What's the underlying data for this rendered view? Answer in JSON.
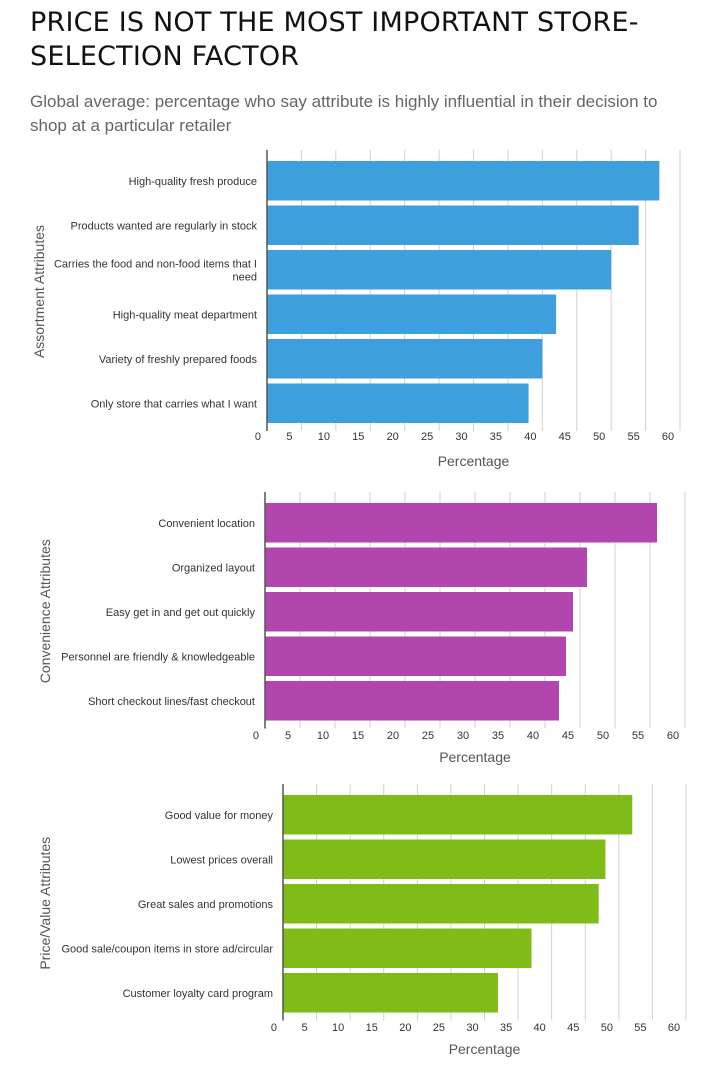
{
  "title": "PRICE IS NOT THE MOST IMPORTANT STORE-SELECTION FACTOR",
  "subtitle": "Global average: percentage who say attribute is highly influential in their decision to shop at a particular retailer",
  "chart_data": [
    {
      "type": "bar",
      "orientation": "horizontal",
      "group_label": "Assortment Attributes",
      "xlabel": "Percentage",
      "xlim": [
        0,
        60
      ],
      "ticks": [
        0,
        5,
        10,
        15,
        20,
        25,
        30,
        35,
        40,
        45,
        50,
        55,
        60
      ],
      "grid": true,
      "color": "#3d9fdb",
      "categories": [
        [
          "High-quality fresh produce"
        ],
        [
          "Products wanted are regularly in stock"
        ],
        [
          "Carries the food and non-food items that I",
          "need"
        ],
        [
          "High-quality meat department"
        ],
        [
          "Variety of freshly prepared foods"
        ],
        [
          "Only store that carries what I want"
        ]
      ],
      "values": [
        57,
        54,
        50,
        42,
        40,
        38
      ]
    },
    {
      "type": "bar",
      "orientation": "horizontal",
      "group_label": "Convenience Attributes",
      "xlabel": "Percentage",
      "xlim": [
        0,
        60
      ],
      "ticks": [
        0,
        5,
        10,
        15,
        20,
        25,
        30,
        35,
        40,
        45,
        50,
        55,
        60
      ],
      "grid": true,
      "color": "#b246ae",
      "categories": [
        [
          "Convenient location"
        ],
        [
          "Organized layout"
        ],
        [
          "Easy get in and get out quickly"
        ],
        [
          "Personnel are friendly & knowledgeable"
        ],
        [
          "Short checkout lines/fast checkout"
        ]
      ],
      "values": [
        56,
        46,
        44,
        43,
        42
      ]
    },
    {
      "type": "bar",
      "orientation": "horizontal",
      "group_label": "Price/Value Attributes",
      "xlabel": "Percentage",
      "xlim": [
        0,
        60
      ],
      "ticks": [
        0,
        5,
        10,
        15,
        20,
        25,
        30,
        35,
        40,
        45,
        50,
        55,
        60
      ],
      "grid": true,
      "color": "#80bc17",
      "categories": [
        [
          "Good value for money"
        ],
        [
          "Lowest prices overall"
        ],
        [
          "Great sales and promotions"
        ],
        [
          "Good sale/coupon items in store ad/circular"
        ],
        [
          "Customer loyalty card program"
        ]
      ],
      "values": [
        52,
        48,
        47,
        37,
        32
      ]
    }
  ]
}
